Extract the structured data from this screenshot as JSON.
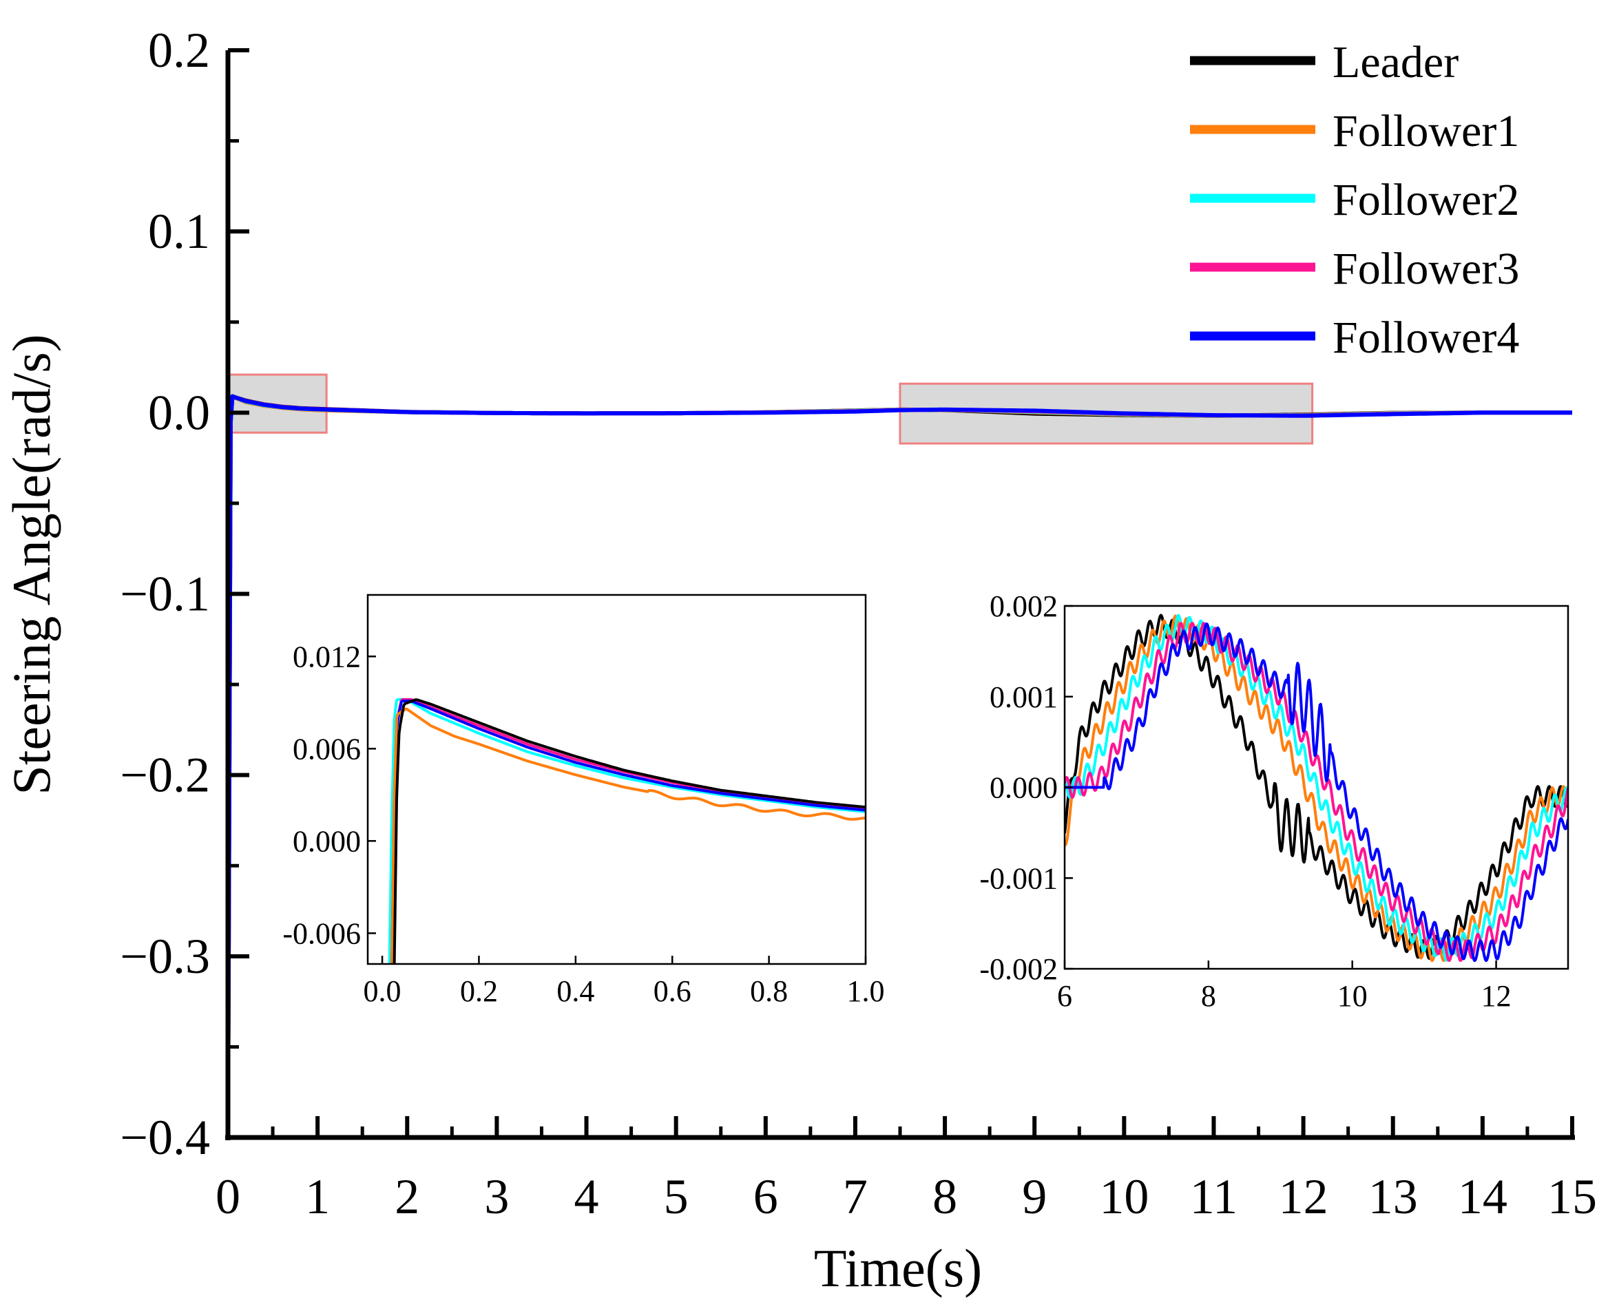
{
  "chart_data": [
    {
      "id": "main",
      "type": "line",
      "title": "",
      "xlabel": "Time(s)",
      "ylabel": "Steering Angle(rad/s)",
      "xlim": [
        0,
        15
      ],
      "ylim": [
        -0.4,
        0.2
      ],
      "xticks": [
        0,
        1,
        2,
        3,
        4,
        5,
        6,
        7,
        8,
        9,
        10,
        11,
        12,
        13,
        14,
        15
      ],
      "xtick_labels": [
        "0",
        "1",
        "2",
        "3",
        "4",
        "5",
        "6",
        "7",
        "8",
        "9",
        "10",
        "11",
        "12",
        "13",
        "14",
        "15"
      ],
      "yticks": [
        0.2,
        0.1,
        0.0,
        -0.1,
        -0.2,
        -0.3,
        -0.4
      ],
      "ytick_labels": [
        "0.2",
        "0.1",
        "0.0",
        "−0.1",
        "−0.2",
        "−0.3",
        "−0.4"
      ],
      "legend_position": "top-right",
      "grid": false,
      "highlight_regions": [
        {
          "x": [
            0,
            1.1
          ],
          "y": [
            -0.011,
            0.021
          ]
        },
        {
          "x": [
            7.5,
            12.1
          ],
          "y": [
            -0.017,
            0.016
          ]
        }
      ],
      "series": [
        {
          "name": "Leader",
          "color": "#000000",
          "x": [
            0,
            0.03,
            0.05,
            0.2,
            0.4,
            0.6,
            0.8,
            1.0,
            2,
            3,
            4,
            5,
            6,
            7,
            7.5,
            8,
            9,
            10,
            11,
            12,
            13,
            14,
            15
          ],
          "y": [
            -0.4,
            -0.005,
            0.009,
            0.0067,
            0.0046,
            0.0033,
            0.0025,
            0.0021,
            0.0004,
            -0.0002,
            -0.0004,
            -0.0003,
            0.0002,
            0.0012,
            0.0017,
            0.0015,
            -0.0005,
            -0.0013,
            -0.0017,
            -0.0011,
            -0.0001,
            0.0,
            0.0
          ]
        },
        {
          "name": "Follower1",
          "color": "#ff7f0e",
          "x": [
            0,
            0.03,
            0.05,
            0.2,
            0.4,
            0.6,
            0.8,
            1.0,
            2,
            3,
            4,
            5,
            6,
            7,
            7.5,
            8,
            9,
            10,
            11,
            12,
            13,
            14,
            15
          ],
          "y": [
            -0.4,
            -0.005,
            0.0088,
            0.0058,
            0.0039,
            0.0027,
            0.0019,
            0.0014,
            0.0003,
            -0.0002,
            -0.0004,
            -0.0003,
            0.0001,
            0.0011,
            0.0017,
            0.0016,
            0.0002,
            -0.001,
            -0.0017,
            -0.0013,
            -0.0002,
            0.0,
            0.0
          ]
        },
        {
          "name": "Follower2",
          "color": "#00ffff",
          "x": [
            0,
            0.03,
            0.05,
            0.2,
            0.4,
            0.6,
            0.8,
            1.0,
            2,
            3,
            4,
            5,
            6,
            7,
            7.5,
            8,
            9,
            10,
            11,
            12,
            13,
            14,
            15
          ],
          "y": [
            -0.4,
            -0.005,
            0.009,
            0.0062,
            0.0042,
            0.003,
            0.0022,
            0.0018,
            0.0003,
            -0.0002,
            -0.0004,
            -0.0003,
            0.0001,
            0.001,
            0.0016,
            0.0017,
            0.0005,
            -0.0008,
            -0.0016,
            -0.0015,
            -0.0004,
            0.0,
            0.0
          ]
        },
        {
          "name": "Follower3",
          "color": "#ff1493",
          "x": [
            0,
            0.03,
            0.05,
            0.2,
            0.4,
            0.6,
            0.8,
            1.0,
            2,
            3,
            4,
            5,
            6,
            7,
            7.5,
            8,
            9,
            10,
            11,
            12,
            13,
            14,
            15
          ],
          "y": [
            -0.4,
            -0.005,
            0.009,
            0.0065,
            0.0045,
            0.0032,
            0.0024,
            0.002,
            0.0003,
            -0.0002,
            -0.0004,
            -0.0003,
            0.0001,
            0.0008,
            0.0015,
            0.0017,
            0.0008,
            -0.0006,
            -0.0015,
            -0.0016,
            -0.0006,
            0.0,
            0.0
          ]
        },
        {
          "name": "Follower4",
          "color": "#0000ff",
          "x": [
            0,
            0.03,
            0.05,
            0.2,
            0.4,
            0.6,
            0.8,
            1.0,
            2,
            3,
            4,
            5,
            6,
            7,
            7.5,
            8,
            9,
            10,
            11,
            12,
            13,
            14,
            15
          ],
          "y": [
            -0.4,
            -0.005,
            0.009,
            0.0064,
            0.0044,
            0.0031,
            0.0023,
            0.0019,
            0.0003,
            -0.0002,
            -0.0004,
            -0.0003,
            0.0,
            0.0006,
            0.0014,
            0.0017,
            0.0011,
            -0.0004,
            -0.0014,
            -0.0017,
            -0.0008,
            0.0,
            0.0
          ]
        }
      ]
    },
    {
      "id": "inset-left",
      "type": "line",
      "title": "",
      "xlabel": "",
      "ylabel": "",
      "xlim": [
        -0.03,
        1.0
      ],
      "ylim": [
        -0.008,
        0.016
      ],
      "xticks": [
        0,
        0.2,
        0.4,
        0.6,
        0.8,
        1.0
      ],
      "xtick_labels": [
        "0.0",
        "0.2",
        "0.4",
        "0.6",
        "0.8",
        "1.0"
      ],
      "yticks": [
        0.012,
        0.006,
        0.0,
        -0.006
      ],
      "ytick_labels": [
        "0.012",
        "0.006",
        "0.000",
        "-0.006"
      ],
      "series": [
        {
          "name": "Follower2",
          "color": "#00ffff",
          "x": [
            0.015,
            0.02,
            0.025,
            0.03,
            0.05,
            0.1,
            0.2,
            0.3,
            0.4,
            0.5,
            0.6,
            0.7,
            0.8,
            0.9,
            1.0
          ],
          "y": [
            -0.008,
            0.002,
            0.008,
            0.0092,
            0.0092,
            0.0083,
            0.007,
            0.0058,
            0.0049,
            0.0041,
            0.0035,
            0.003,
            0.0026,
            0.0022,
            0.0019
          ]
        },
        {
          "name": "Follower3",
          "color": "#ff1493",
          "x": [
            0.02,
            0.025,
            0.03,
            0.04,
            0.06,
            0.1,
            0.2,
            0.3,
            0.4,
            0.5,
            0.6,
            0.7,
            0.8,
            0.9,
            1.0
          ],
          "y": [
            -0.008,
            0.003,
            0.0078,
            0.0092,
            0.0092,
            0.0087,
            0.0075,
            0.0063,
            0.0053,
            0.0045,
            0.0038,
            0.0032,
            0.0028,
            0.0024,
            0.0021
          ]
        },
        {
          "name": "Follower4",
          "color": "#0000ff",
          "x": [
            0.02,
            0.025,
            0.03,
            0.04,
            0.06,
            0.1,
            0.2,
            0.3,
            0.4,
            0.5,
            0.6,
            0.7,
            0.8,
            0.9,
            1.0
          ],
          "y": [
            -0.008,
            0.002,
            0.0075,
            0.0091,
            0.0091,
            0.0086,
            0.0073,
            0.0061,
            0.0051,
            0.0043,
            0.0036,
            0.0031,
            0.0027,
            0.0023,
            0.002
          ]
        },
        {
          "name": "Follower1",
          "color": "#ff7f0e",
          "x": [
            0.02,
            0.025,
            0.03,
            0.05,
            0.1,
            0.15,
            0.2,
            0.3,
            0.4,
            0.5,
            0.6,
            0.7,
            0.8,
            0.85,
            0.9,
            0.95,
            1.0
          ],
          "y": [
            -0.008,
            0.003,
            0.0082,
            0.0086,
            0.0075,
            0.0068,
            0.0063,
            0.0052,
            0.0043,
            0.0035,
            0.0029,
            0.0024,
            0.002,
            0.0018,
            0.0017,
            0.0016,
            0.0014
          ]
        },
        {
          "name": "Leader",
          "color": "#000000",
          "x": [
            0.025,
            0.03,
            0.035,
            0.045,
            0.07,
            0.1,
            0.2,
            0.3,
            0.4,
            0.5,
            0.6,
            0.7,
            0.8,
            0.9,
            1.0
          ],
          "y": [
            -0.008,
            0.003,
            0.0072,
            0.0089,
            0.0092,
            0.0089,
            0.0077,
            0.0065,
            0.0055,
            0.0046,
            0.0039,
            0.0033,
            0.0029,
            0.0025,
            0.0022
          ]
        }
      ]
    },
    {
      "id": "inset-right",
      "type": "line",
      "title": "",
      "xlabel": "",
      "ylabel": "",
      "xlim": [
        6,
        13
      ],
      "ylim": [
        -0.002,
        0.002
      ],
      "xticks": [
        6,
        8,
        10,
        12
      ],
      "xtick_labels": [
        "6",
        "8",
        "10",
        "12"
      ],
      "yticks": [
        0.002,
        0.001,
        0.0,
        -0.001,
        -0.002
      ],
      "ytick_labels": [
        "0.002",
        "0.001",
        "0.000",
        "-0.001",
        "-0.002"
      ],
      "series": [
        {
          "name": "Leader",
          "color": "#000000",
          "phase": 0.0,
          "x": [
            6.0,
            6.2,
            6.5,
            7.0,
            7.3,
            7.6,
            8.0,
            8.5,
            9.0,
            9.3,
            9.6,
            10.0,
            10.5,
            11.0,
            11.3,
            11.6,
            12.0,
            12.3,
            12.5,
            12.8,
            13.0
          ],
          "y": [
            -0.0004,
            0.0005,
            0.001,
            0.0016,
            0.0018,
            0.0017,
            0.0013,
            0.0006,
            -0.0004,
            -0.0005,
            -0.0008,
            -0.0012,
            -0.0016,
            -0.0018,
            -0.0017,
            -0.0014,
            -0.0009,
            -0.0004,
            -0.0001,
            -0.0001,
            -0.0001
          ]
        },
        {
          "name": "Follower1",
          "color": "#ff7f0e",
          "phase": 0.12,
          "x": [
            6.0,
            6.2,
            6.5,
            7.0,
            7.3,
            7.6,
            8.0,
            8.5,
            9.0,
            9.3,
            9.6,
            10.0,
            10.5,
            11.0,
            11.3,
            11.6,
            12.0,
            12.3,
            12.5,
            12.8,
            13.0
          ],
          "y": [
            -0.0006,
            0.0002,
            0.0007,
            0.0014,
            0.0017,
            0.0018,
            0.0016,
            0.0011,
            0.0006,
            0.0001,
            -0.0005,
            -0.001,
            -0.0015,
            -0.0018,
            -0.0018,
            -0.0016,
            -0.0012,
            -0.0007,
            -0.0003,
            -0.0001,
            -0.0001
          ]
        },
        {
          "name": "Follower2",
          "color": "#00ffff",
          "phase": 0.24,
          "x": [
            6.0,
            6.2,
            6.5,
            7.0,
            7.3,
            7.6,
            8.0,
            8.5,
            9.0,
            9.3,
            9.6,
            10.0,
            10.5,
            11.0,
            11.3,
            11.6,
            12.0,
            12.3,
            12.5,
            12.8,
            13.0
          ],
          "y": [
            0.0,
            0.0,
            0.0004,
            0.0012,
            0.0016,
            0.0018,
            0.0017,
            0.0013,
            0.0008,
            0.0004,
            -0.0002,
            -0.0008,
            -0.0014,
            -0.0017,
            -0.0018,
            -0.0017,
            -0.0014,
            -0.0009,
            -0.0005,
            -0.0002,
            -0.0001
          ]
        },
        {
          "name": "Follower3",
          "color": "#ff1493",
          "phase": 0.36,
          "x": [
            6.0,
            6.2,
            6.5,
            7.0,
            7.3,
            7.6,
            8.0,
            8.5,
            9.0,
            9.3,
            9.6,
            10.0,
            10.5,
            11.0,
            11.3,
            11.6,
            12.0,
            12.3,
            12.5,
            12.8,
            13.0
          ],
          "y": [
            0.0,
            0.0,
            0.0001,
            0.0009,
            0.0014,
            0.0017,
            0.0017,
            0.0014,
            0.001,
            0.0006,
            0.0001,
            -0.0006,
            -0.0012,
            -0.0016,
            -0.0018,
            -0.0018,
            -0.0016,
            -0.0012,
            -0.0008,
            -0.0004,
            -0.0001
          ]
        },
        {
          "name": "Follower4",
          "color": "#0000ff",
          "phase": 0.48,
          "x": [
            6.0,
            6.2,
            6.4,
            6.5,
            6.55,
            7.0,
            7.3,
            7.6,
            8.0,
            8.5,
            9.0,
            9.3,
            9.6,
            10.0,
            10.5,
            11.0,
            11.3,
            11.6,
            12.0,
            12.3,
            12.5,
            12.8,
            13.0
          ],
          "y": [
            0.0,
            0.0,
            0.0,
            0.0,
            0.0,
            0.0006,
            0.0012,
            0.0016,
            0.0017,
            0.0015,
            0.0011,
            0.001,
            0.0005,
            -0.0003,
            -0.001,
            -0.0015,
            -0.0017,
            -0.0018,
            -0.0018,
            -0.0015,
            -0.0011,
            -0.0006,
            -0.0003
          ]
        }
      ]
    }
  ]
}
